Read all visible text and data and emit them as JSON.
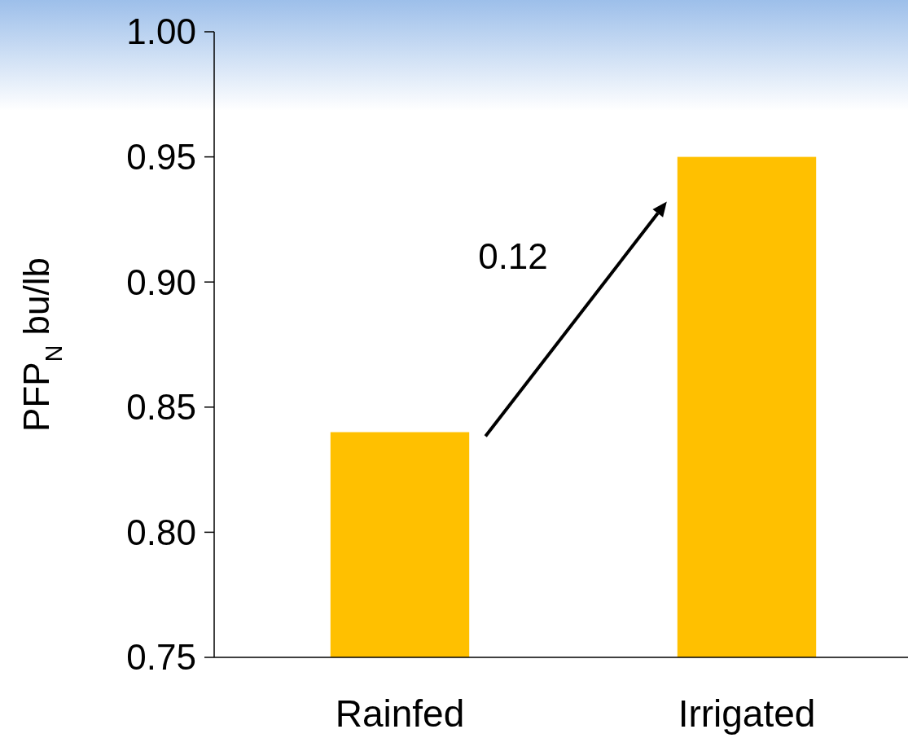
{
  "chart_data": {
    "type": "bar",
    "ylabel": "PFP$_{N}$ bu/lb",
    "categories": [
      "Rainfed",
      "Irrigated"
    ],
    "values": [
      0.84,
      0.95
    ],
    "color": "#ffc000",
    "ylim": [
      0.75,
      1.0
    ],
    "yticks": [
      {
        "value": 0.75,
        "label": "0.75"
      },
      {
        "value": 0.8,
        "label": "0.80"
      },
      {
        "value": 0.85,
        "label": "0.85"
      },
      {
        "value": 0.9,
        "label": "0.90"
      },
      {
        "value": 0.95,
        "label": "0.95"
      },
      {
        "value": 1.0,
        "label": "1.00"
      }
    ],
    "annotations": [
      "0.12"
    ]
  }
}
